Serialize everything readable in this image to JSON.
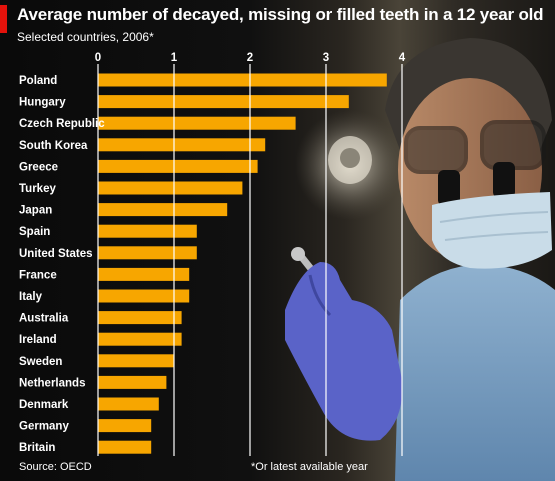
{
  "chart_data": {
    "type": "bar",
    "orientation": "horizontal",
    "title": "Average number of decayed, missing or filled teeth in a 12 year old",
    "subtitle": "Selected countries, 2006*",
    "source": "Source: OECD",
    "footnote": "*Or latest available year",
    "categories": [
      "Poland",
      "Hungary",
      "Czech Republic",
      "South Korea",
      "Greece",
      "Turkey",
      "Japan",
      "Spain",
      "United States",
      "France",
      "Italy",
      "Australia",
      "Ireland",
      "Sweden",
      "Netherlands",
      "Denmark",
      "Germany",
      "Britain"
    ],
    "values": [
      3.8,
      3.3,
      2.6,
      2.2,
      2.1,
      1.9,
      1.7,
      1.3,
      1.3,
      1.2,
      1.2,
      1.1,
      1.1,
      1.0,
      0.9,
      0.8,
      0.7,
      0.7
    ],
    "x_ticks": [
      "0",
      "1",
      "2",
      "3",
      "4"
    ],
    "xlim": [
      0,
      4
    ],
    "axis_position": "top",
    "grid": true,
    "bar_color": "#f7a600",
    "gridline_color": "#ffffff",
    "label_color": "#ffffff",
    "accent_color": "#e3120b"
  }
}
